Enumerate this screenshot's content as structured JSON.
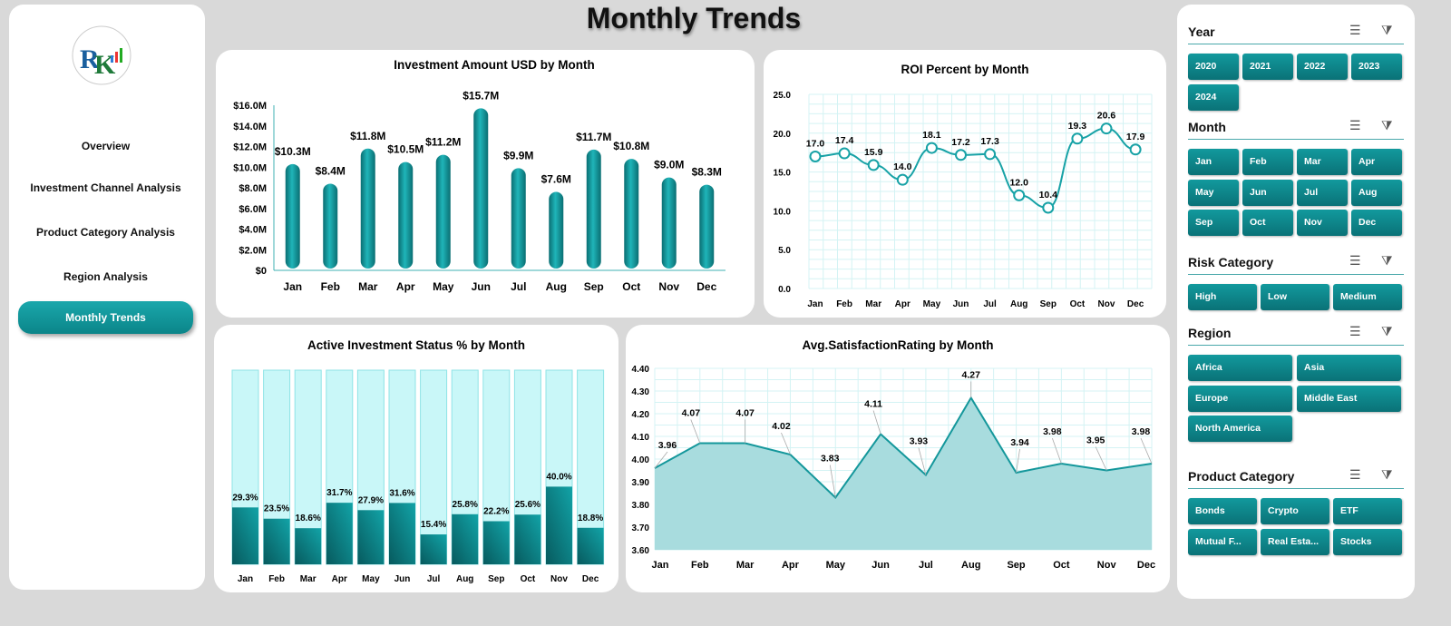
{
  "title": "Monthly Trends",
  "colors": {
    "accent": "#0e8f93",
    "light_fill": "#c9f7f8",
    "area_fill": "#a8dcde"
  },
  "logo": {
    "text": "RK"
  },
  "nav": [
    {
      "label": "Overview"
    },
    {
      "label": "Investment Channel Analysis"
    },
    {
      "label": "Product Category  Analysis"
    },
    {
      "label": "Region  Analysis"
    },
    {
      "label": "Monthly Trends",
      "active": true
    }
  ],
  "chart_data": [
    {
      "type": "bar",
      "title": "Investment Amount USD by Month",
      "categories": [
        "Jan",
        "Feb",
        "Mar",
        "Apr",
        "May",
        "Jun",
        "Jul",
        "Aug",
        "Sep",
        "Oct",
        "Nov",
        "Dec"
      ],
      "values": [
        10.3,
        8.4,
        11.8,
        10.5,
        11.2,
        15.7,
        9.9,
        7.6,
        11.7,
        10.8,
        9.0,
        8.3
      ],
      "data_labels": [
        "$10.3M",
        "$8.4M",
        "$11.8M",
        "$10.5M",
        "$11.2M",
        "$15.7M",
        "$9.9M",
        "$7.6M",
        "$11.7M",
        "$10.8M",
        "$9.0M",
        "$8.3M"
      ],
      "yticks": [
        "$0",
        "$2.0M",
        "$4.0M",
        "$6.0M",
        "$8.0M",
        "$10.0M",
        "$12.0M",
        "$14.0M",
        "$16.0M"
      ],
      "ylim": [
        0,
        16
      ],
      "unit": "$M"
    },
    {
      "type": "line",
      "title": "ROI Percent by Month",
      "categories": [
        "Jan",
        "Feb",
        "Mar",
        "Apr",
        "May",
        "Jun",
        "Jul",
        "Aug",
        "Sep",
        "Oct",
        "Nov",
        "Dec"
      ],
      "values": [
        17.0,
        17.4,
        15.9,
        14.0,
        18.1,
        17.2,
        17.3,
        12.0,
        10.4,
        19.3,
        20.6,
        17.9
      ],
      "yticks": [
        "0.0",
        "5.0",
        "10.0",
        "15.0",
        "20.0",
        "25.0"
      ],
      "ylim": [
        0,
        25
      ],
      "grid": true
    },
    {
      "type": "bar",
      "title": "Active Investment Status % by Month",
      "categories": [
        "Jan",
        "Feb",
        "Mar",
        "Apr",
        "May",
        "Jun",
        "Jul",
        "Aug",
        "Sep",
        "Oct",
        "Nov",
        "Dec"
      ],
      "values": [
        29.3,
        23.5,
        18.6,
        31.7,
        27.9,
        31.6,
        15.4,
        25.8,
        22.2,
        25.6,
        40.0,
        18.8
      ],
      "data_labels": [
        "29.3%",
        "23.5%",
        "18.6%",
        "31.7%",
        "27.9%",
        "31.6%",
        "15.4%",
        "25.8%",
        "22.2%",
        "25.6%",
        "40.0%",
        "18.8%"
      ],
      "ylim": [
        0,
        100
      ],
      "stacked_to_100": true
    },
    {
      "type": "area",
      "title": "Avg.SatisfactionRating by Month",
      "categories": [
        "Jan",
        "Feb",
        "Mar",
        "Apr",
        "May",
        "Jun",
        "Jul",
        "Aug",
        "Sep",
        "Oct",
        "Nov",
        "Dec"
      ],
      "values": [
        3.96,
        4.07,
        4.07,
        4.02,
        3.83,
        4.11,
        3.93,
        4.27,
        3.94,
        3.98,
        3.95,
        3.98
      ],
      "yticks": [
        "3.60",
        "3.70",
        "3.80",
        "3.90",
        "4.00",
        "4.10",
        "4.20",
        "4.30",
        "4.40"
      ],
      "ylim": [
        3.6,
        4.4
      ],
      "grid": true
    }
  ],
  "slicers": [
    {
      "title": "Year",
      "items": [
        "2020",
        "2021",
        "2022",
        "2023",
        "2024"
      ],
      "cols": 4
    },
    {
      "title": "Month",
      "items": [
        "Jan",
        "Feb",
        "Mar",
        "Apr",
        "May",
        "Jun",
        "Jul",
        "Aug",
        "Sep",
        "Oct",
        "Nov",
        "Dec"
      ],
      "cols": 4
    },
    {
      "title": "Risk Category",
      "items": [
        "High",
        "Low",
        "Medium"
      ],
      "cols": 3
    },
    {
      "title": "Region",
      "items": [
        "Africa",
        "Asia",
        "Europe",
        "Middle East",
        "North America"
      ],
      "cols": 2
    },
    {
      "title": "Product Category",
      "items": [
        "Bonds",
        "Crypto",
        "ETF",
        "Mutual F...",
        "Real Esta...",
        "Stocks"
      ],
      "cols": 3
    }
  ]
}
